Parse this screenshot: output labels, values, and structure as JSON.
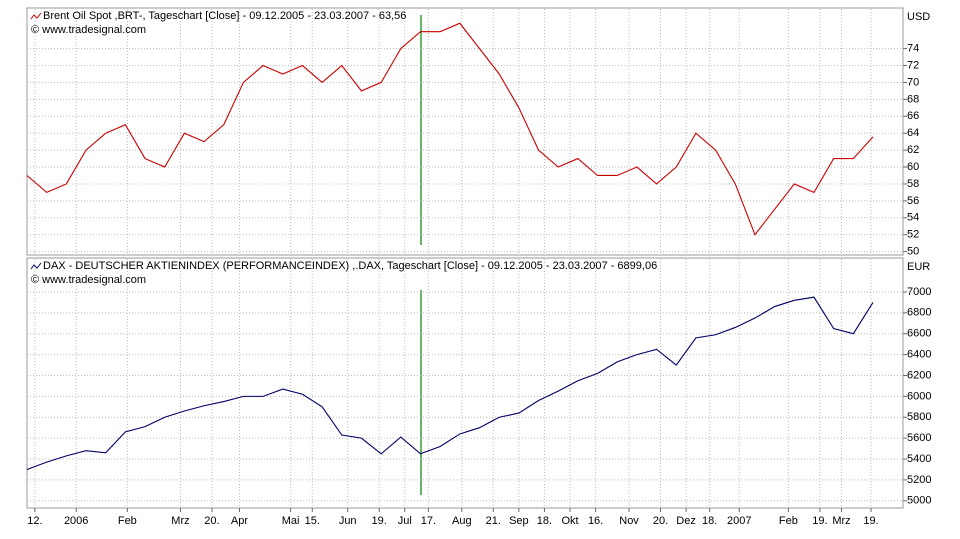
{
  "chart_data": [
    {
      "type": "line",
      "title": "Brent Oil Spot ,BRT-, Tageschart [Close] - 09.12.2005 - 23.03.2007 - 63,56",
      "subtitle": "© www.tradesignal.com",
      "y_axis_label": "USD",
      "series": [
        {
          "name": "Brent Oil Spot",
          "color": "#cc0000",
          "values": [
            59,
            57,
            58,
            62,
            64,
            65,
            61,
            60,
            64,
            63,
            65,
            70,
            72,
            71,
            72,
            70,
            72,
            69,
            70,
            74,
            76,
            76,
            77,
            74,
            71,
            67,
            62,
            60,
            61,
            59,
            59,
            60,
            58,
            60,
            64,
            62,
            58,
            52,
            55,
            58,
            57,
            61,
            61,
            63.56
          ]
        }
      ],
      "xlim": [
        0,
        43
      ],
      "ylim": [
        49.6,
        78.8
      ],
      "yticks": [
        50,
        52,
        54,
        56,
        58,
        60,
        62,
        64,
        66,
        68,
        70,
        72,
        74
      ],
      "grid": true
    },
    {
      "type": "line",
      "title": "DAX - DEUTSCHER AKTIENINDEX (PERFORMANCEINDEX) ,.DAX, Tageschart [Close] - 09.12.2005 - 23.03.2007 - 6899,06",
      "subtitle": "© www.tradesignal.com",
      "y_axis_label": "EUR",
      "series": [
        {
          "name": "DAX",
          "color": "#000066",
          "values": [
            5300,
            5370,
            5430,
            5480,
            5460,
            5660,
            5710,
            5800,
            5860,
            5910,
            5950,
            6000,
            6000,
            6070,
            6020,
            5900,
            5630,
            5600,
            5450,
            5610,
            5450,
            5520,
            5640,
            5700,
            5800,
            5840,
            5960,
            6050,
            6150,
            6220,
            6330,
            6400,
            6450,
            6300,
            6560,
            6590,
            6660,
            6750,
            6860,
            6920,
            6950,
            6650,
            6600,
            6899.06
          ]
        }
      ],
      "xlim": [
        0,
        43
      ],
      "ylim": [
        4931,
        7325
      ],
      "yticks": [
        5000,
        5200,
        5400,
        5600,
        5800,
        6000,
        6200,
        6400,
        6600,
        6800,
        7000
      ],
      "grid": true,
      "xticks": [
        {
          "value": 0.4,
          "label": "12."
        },
        {
          "value": 2.5,
          "label": "2006"
        },
        {
          "value": 5.1,
          "label": "Feb"
        },
        {
          "value": 7.8,
          "label": "Mrz"
        },
        {
          "value": 9.4,
          "label": "20."
        },
        {
          "value": 10.8,
          "label": "Apr"
        },
        {
          "value": 13.4,
          "label": "Mai"
        },
        {
          "value": 14.5,
          "label": "15."
        },
        {
          "value": 16.3,
          "label": "Jun"
        },
        {
          "value": 17.9,
          "label": "19."
        },
        {
          "value": 19.2,
          "label": "Jul"
        },
        {
          "value": 20.4,
          "label": "17."
        },
        {
          "value": 22.1,
          "label": "Aug"
        },
        {
          "value": 23.7,
          "label": "21."
        },
        {
          "value": 25,
          "label": "Sep"
        },
        {
          "value": 26.3,
          "label": "18."
        },
        {
          "value": 27.6,
          "label": "Okt"
        },
        {
          "value": 28.9,
          "label": "16."
        },
        {
          "value": 30.6,
          "label": "Nov"
        },
        {
          "value": 32.2,
          "label": "20."
        },
        {
          "value": 33.5,
          "label": "Dez"
        },
        {
          "value": 34.7,
          "label": "18."
        },
        {
          "value": 36.2,
          "label": "2007"
        },
        {
          "value": 38.7,
          "label": "Feb"
        },
        {
          "value": 40.3,
          "label": "19."
        },
        {
          "value": 41.4,
          "label": "Mrz"
        },
        {
          "value": 42.9,
          "label": "19."
        }
      ]
    }
  ]
}
